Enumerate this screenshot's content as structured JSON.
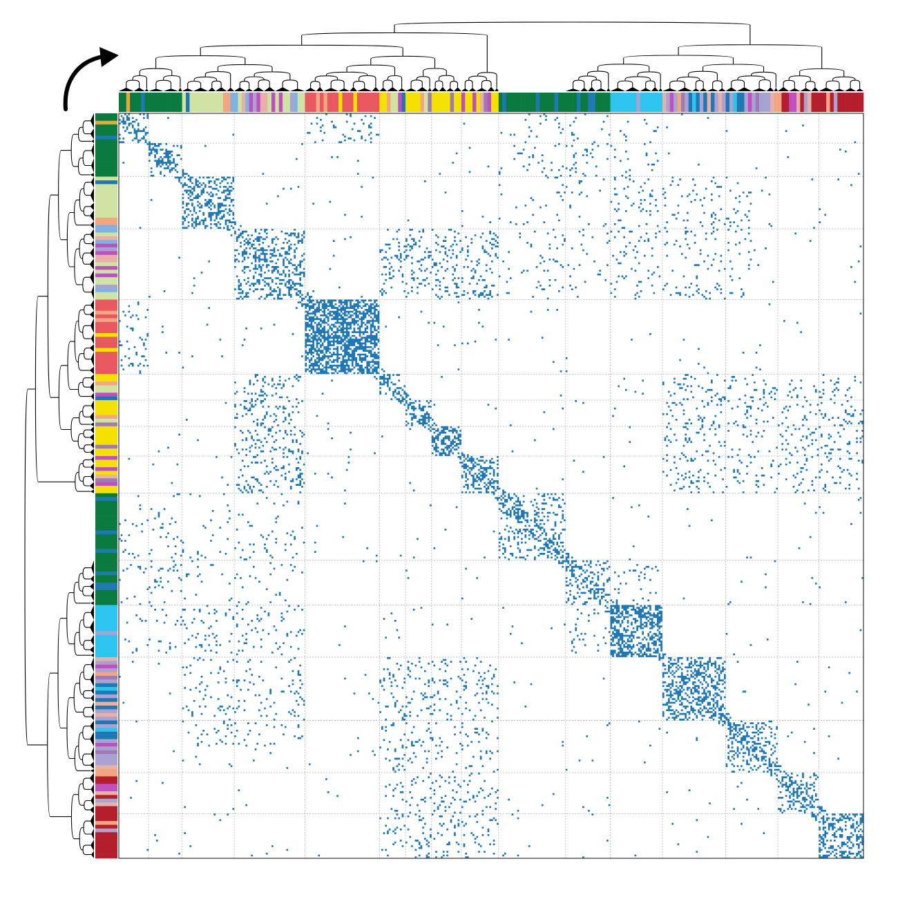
{
  "chart_data": {
    "type": "heatmap",
    "title": "",
    "xlabel": "",
    "ylabel": "",
    "matrix_kind": "binary adjacency matrix, rows and columns ordered by hierarchical clustering",
    "marker_color": "#1f77b4",
    "grid": true,
    "grid_style": "dotted gray",
    "node_count": 200,
    "top_level_split": [
      0,
      105,
      200
    ],
    "block_boundaries": [
      0,
      8,
      17,
      31,
      50,
      70,
      77,
      84,
      92,
      102,
      120,
      132,
      146,
      163,
      177,
      188,
      200
    ],
    "communities": [
      {
        "range": [
          0,
          8
        ],
        "base_density": 0.3
      },
      {
        "range": [
          8,
          17
        ],
        "base_density": 0.22
      },
      {
        "range": [
          17,
          31
        ],
        "base_density": 0.38
      },
      {
        "range": [
          31,
          50
        ],
        "base_density": 0.32
      },
      {
        "range": [
          50,
          70
        ],
        "base_density": 0.72
      },
      {
        "range": [
          70,
          77
        ],
        "base_density": 0.3
      },
      {
        "range": [
          77,
          84
        ],
        "base_density": 0.45
      },
      {
        "range": [
          84,
          92
        ],
        "base_density": 0.55
      },
      {
        "range": [
          92,
          102
        ],
        "base_density": 0.35
      },
      {
        "range": [
          102,
          120
        ],
        "base_density": 0.22
      },
      {
        "range": [
          120,
          132
        ],
        "base_density": 0.2
      },
      {
        "range": [
          132,
          146
        ],
        "base_density": 0.6
      },
      {
        "range": [
          146,
          163
        ],
        "base_density": 0.4
      },
      {
        "range": [
          163,
          177
        ],
        "base_density": 0.25
      },
      {
        "range": [
          177,
          188
        ],
        "base_density": 0.35
      },
      {
        "range": [
          188,
          200
        ],
        "base_density": 0.45
      }
    ],
    "off_diagonal_blocks": [
      {
        "rows": [
          0,
          8
        ],
        "cols": [
          50,
          70
        ],
        "density": 0.1
      },
      {
        "rows": [
          17,
          50
        ],
        "cols": [
          132,
          170
        ],
        "density": 0.06
      },
      {
        "rows": [
          31,
          50
        ],
        "cols": [
          70,
          102
        ],
        "density": 0.14
      },
      {
        "rows": [
          70,
          102
        ],
        "cols": [
          146,
          200
        ],
        "density": 0.08
      },
      {
        "rows": [
          102,
          132
        ],
        "cols": [
          0,
          50
        ],
        "density": 0.03
      },
      {
        "rows": [
          132,
          146
        ],
        "cols": [
          0,
          50
        ],
        "density": 0.04
      },
      {
        "rows": [
          146,
          163
        ],
        "cols": [
          17,
          50
        ],
        "density": 0.06
      },
      {
        "rows": [
          163,
          200
        ],
        "cols": [
          70,
          102
        ],
        "density": 0.07
      },
      {
        "rows": [
          0,
          17
        ],
        "cols": [
          102,
          132
        ],
        "density": 0.05
      },
      {
        "rows": [
          120,
          132
        ],
        "cols": [
          132,
          146
        ],
        "density": 0.04
      }
    ],
    "background_density": 0.004,
    "palette": [
      "#0b7a3e",
      "#1f77b4",
      "#e7585f",
      "#f5e100",
      "#c04fc0",
      "#e9a63b",
      "#2ec4f0",
      "#a9a3d1",
      "#e9b0a8",
      "#b41f2d",
      "#cfe3a3",
      "#7fb1e3",
      "#f4a582",
      "#9e7bb5"
    ],
    "color_sections": [
      {
        "range": [
          0,
          17
        ],
        "palette": [
          0,
          0,
          0,
          1,
          0,
          5,
          10
        ]
      },
      {
        "range": [
          17,
          50
        ],
        "palette": [
          10,
          10,
          8,
          7,
          11,
          12,
          4,
          1
        ]
      },
      {
        "range": [
          50,
          70
        ],
        "palette": [
          2,
          2,
          2,
          2,
          3,
          12
        ]
      },
      {
        "range": [
          70,
          102
        ],
        "palette": [
          3,
          4,
          1,
          12,
          8,
          5,
          13,
          10
        ]
      },
      {
        "range": [
          102,
          132
        ],
        "palette": [
          0,
          0,
          0,
          0,
          5,
          1
        ]
      },
      {
        "range": [
          132,
          146
        ],
        "palette": [
          6,
          7,
          6,
          8,
          13
        ]
      },
      {
        "range": [
          146,
          177
        ],
        "palette": [
          7,
          8,
          12,
          1,
          6,
          13,
          4
        ]
      },
      {
        "range": [
          177,
          200
        ],
        "palette": [
          9,
          8,
          12,
          1,
          7,
          4,
          9
        ]
      }
    ],
    "dendrogram": {
      "orientation": [
        "top",
        "left"
      ],
      "leaf_marker": "triangle",
      "line_color": "#000000"
    },
    "arrow": {
      "style": "curved",
      "color": "#000000"
    }
  }
}
